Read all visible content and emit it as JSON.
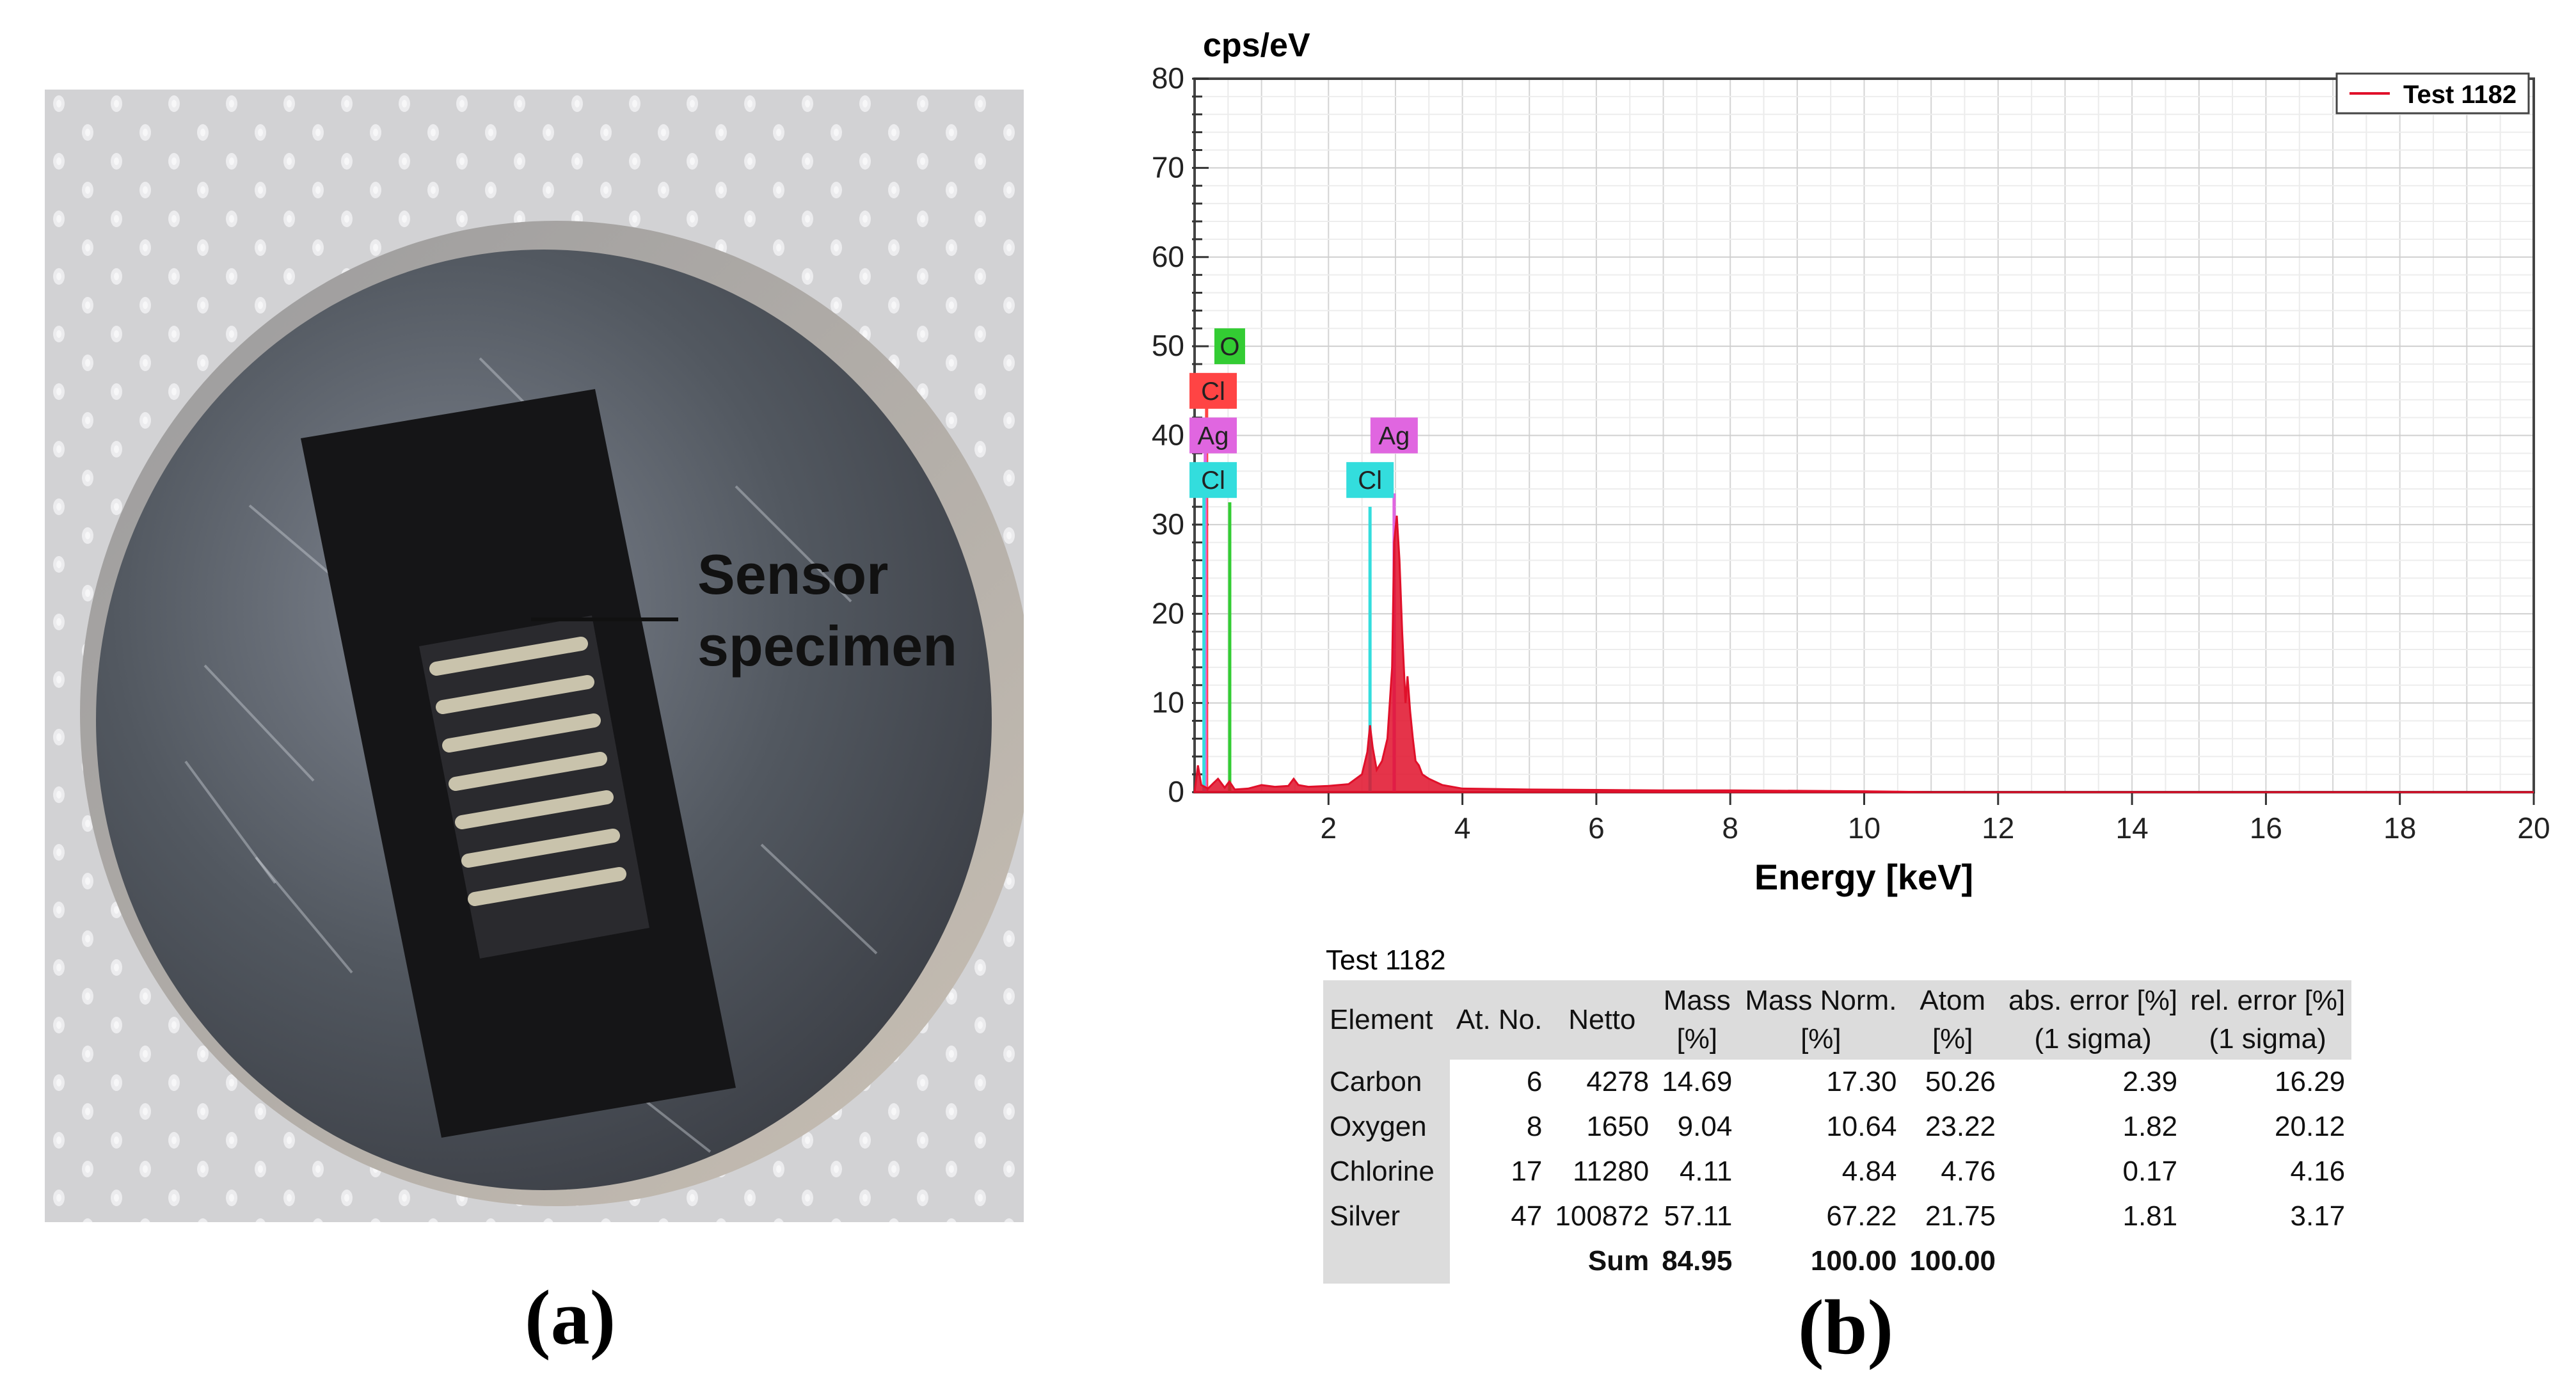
{
  "panels": {
    "a_label": "(a)",
    "b_label": "(b)"
  },
  "photo": {
    "annotation_line1": "Sensor",
    "annotation_line2": "specimen"
  },
  "chart_data": {
    "type": "line",
    "ylabel": "cps/eV",
    "xlabel": "Energy [keV]",
    "xlim": [
      0,
      20
    ],
    "ylim": [
      0,
      80
    ],
    "xticks": [
      2,
      4,
      6,
      8,
      10,
      12,
      14,
      16,
      18,
      20
    ],
    "yticks": [
      0,
      10,
      20,
      30,
      40,
      50,
      60,
      70,
      80
    ],
    "grid": true,
    "legend_position": "top-right",
    "series": [
      {
        "name": "Test 1182",
        "color": "#e0102a",
        "x": [
          0.0,
          0.05,
          0.1,
          0.2,
          0.28,
          0.35,
          0.45,
          0.52,
          0.6,
          0.8,
          1.0,
          1.2,
          1.4,
          1.48,
          1.55,
          1.7,
          2.0,
          2.3,
          2.5,
          2.58,
          2.62,
          2.66,
          2.72,
          2.8,
          2.88,
          2.95,
          2.98,
          3.02,
          3.06,
          3.1,
          3.15,
          3.18,
          3.22,
          3.26,
          3.3,
          3.35,
          3.4,
          3.5,
          3.7,
          4.0,
          5.0,
          6.0,
          7.0,
          8.0,
          9.0,
          10.0,
          10.5,
          11.0,
          20.0
        ],
        "y": [
          0,
          3.0,
          0.8,
          0.4,
          1.0,
          1.5,
          0.5,
          1.2,
          0.3,
          0.4,
          0.8,
          0.6,
          0.7,
          1.5,
          0.8,
          0.6,
          0.7,
          0.9,
          2.0,
          4.5,
          7.5,
          5.0,
          2.5,
          3.5,
          6.0,
          14.0,
          28.0,
          31.0,
          26.0,
          18.0,
          10.0,
          13.0,
          9.0,
          6.0,
          3.5,
          3.0,
          2.0,
          1.5,
          0.8,
          0.4,
          0.3,
          0.25,
          0.2,
          0.2,
          0.15,
          0.1,
          0.05,
          0.0,
          0.0
        ]
      }
    ],
    "peak_markers": [
      {
        "label": "O",
        "energy": 0.525,
        "line_top": 32.5,
        "label_y": 50,
        "color": "#33cc33"
      },
      {
        "label": "Cl",
        "energy": 0.18,
        "line_top": 46,
        "label_y": 45,
        "color": "#ff4444"
      },
      {
        "label": "Ag",
        "energy": 0.16,
        "line_top": 40.5,
        "label_y": 40,
        "color": "#e066e0"
      },
      {
        "label": "Cl",
        "energy": 0.14,
        "line_top": 35.5,
        "label_y": 35,
        "color": "#33dddd"
      },
      {
        "label": "Ag",
        "energy": 2.98,
        "line_top": 33.5,
        "label_y": 40,
        "color": "#e066e0"
      },
      {
        "label": "Cl",
        "energy": 2.62,
        "line_top": 32,
        "label_y": 35,
        "color": "#33dddd"
      }
    ]
  },
  "table": {
    "title": "Test 1182",
    "headers": [
      "Element",
      "At. No.",
      "Netto",
      "Mass\n[%]",
      "Mass Norm.\n[%]",
      "Atom\n[%]",
      "abs. error [%]\n(1 sigma)",
      "rel. error [%]\n(1 sigma)"
    ],
    "rows": [
      [
        "Carbon",
        "6",
        "4278",
        "14.69",
        "17.30",
        "50.26",
        "2.39",
        "16.29"
      ],
      [
        "Oxygen",
        "8",
        "1650",
        "9.04",
        "10.64",
        "23.22",
        "1.82",
        "20.12"
      ],
      [
        "Chlorine",
        "17",
        "11280",
        "4.11",
        "4.84",
        "4.76",
        "0.17",
        "4.16"
      ],
      [
        "Silver",
        "47",
        "100872",
        "57.11",
        "67.22",
        "21.75",
        "1.81",
        "3.17"
      ]
    ],
    "sum_row": {
      "label": "Sum",
      "mass": "84.95",
      "mass_norm": "100.00",
      "atom": "100.00"
    }
  }
}
